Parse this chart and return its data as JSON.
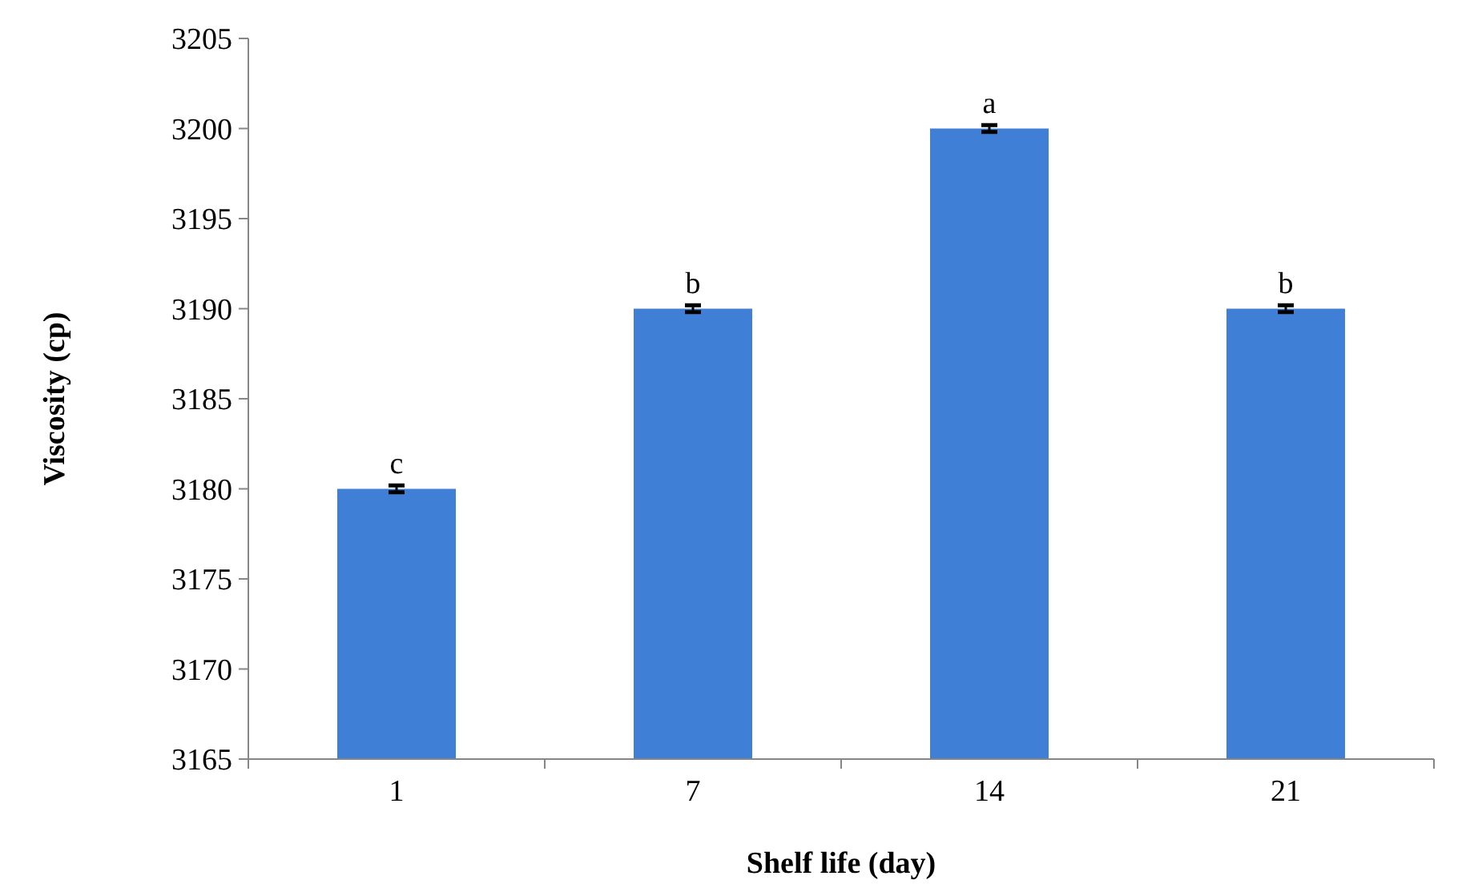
{
  "chart_data": {
    "type": "bar",
    "xlabel": "Shelf life (day)",
    "ylabel": "Viscosity (cp)",
    "categories": [
      "1",
      "7",
      "14",
      "21"
    ],
    "values": [
      3180,
      3190,
      3200,
      3190
    ],
    "errors": [
      0.1,
      0.1,
      0.1,
      0.1
    ],
    "color": "#3f7fd6",
    "ylim": [
      3165,
      3205
    ],
    "yticks": [
      3165,
      3170,
      3175,
      3180,
      3185,
      3190,
      3195,
      3200,
      3205
    ],
    "annotations": [
      {
        "text": "c",
        "x": "1",
        "y": 3180
      },
      {
        "text": "b",
        "x": "7",
        "y": 3190
      },
      {
        "text": "a",
        "x": "14",
        "y": 3200
      },
      {
        "text": "b",
        "x": "21",
        "y": 3190
      }
    ]
  }
}
